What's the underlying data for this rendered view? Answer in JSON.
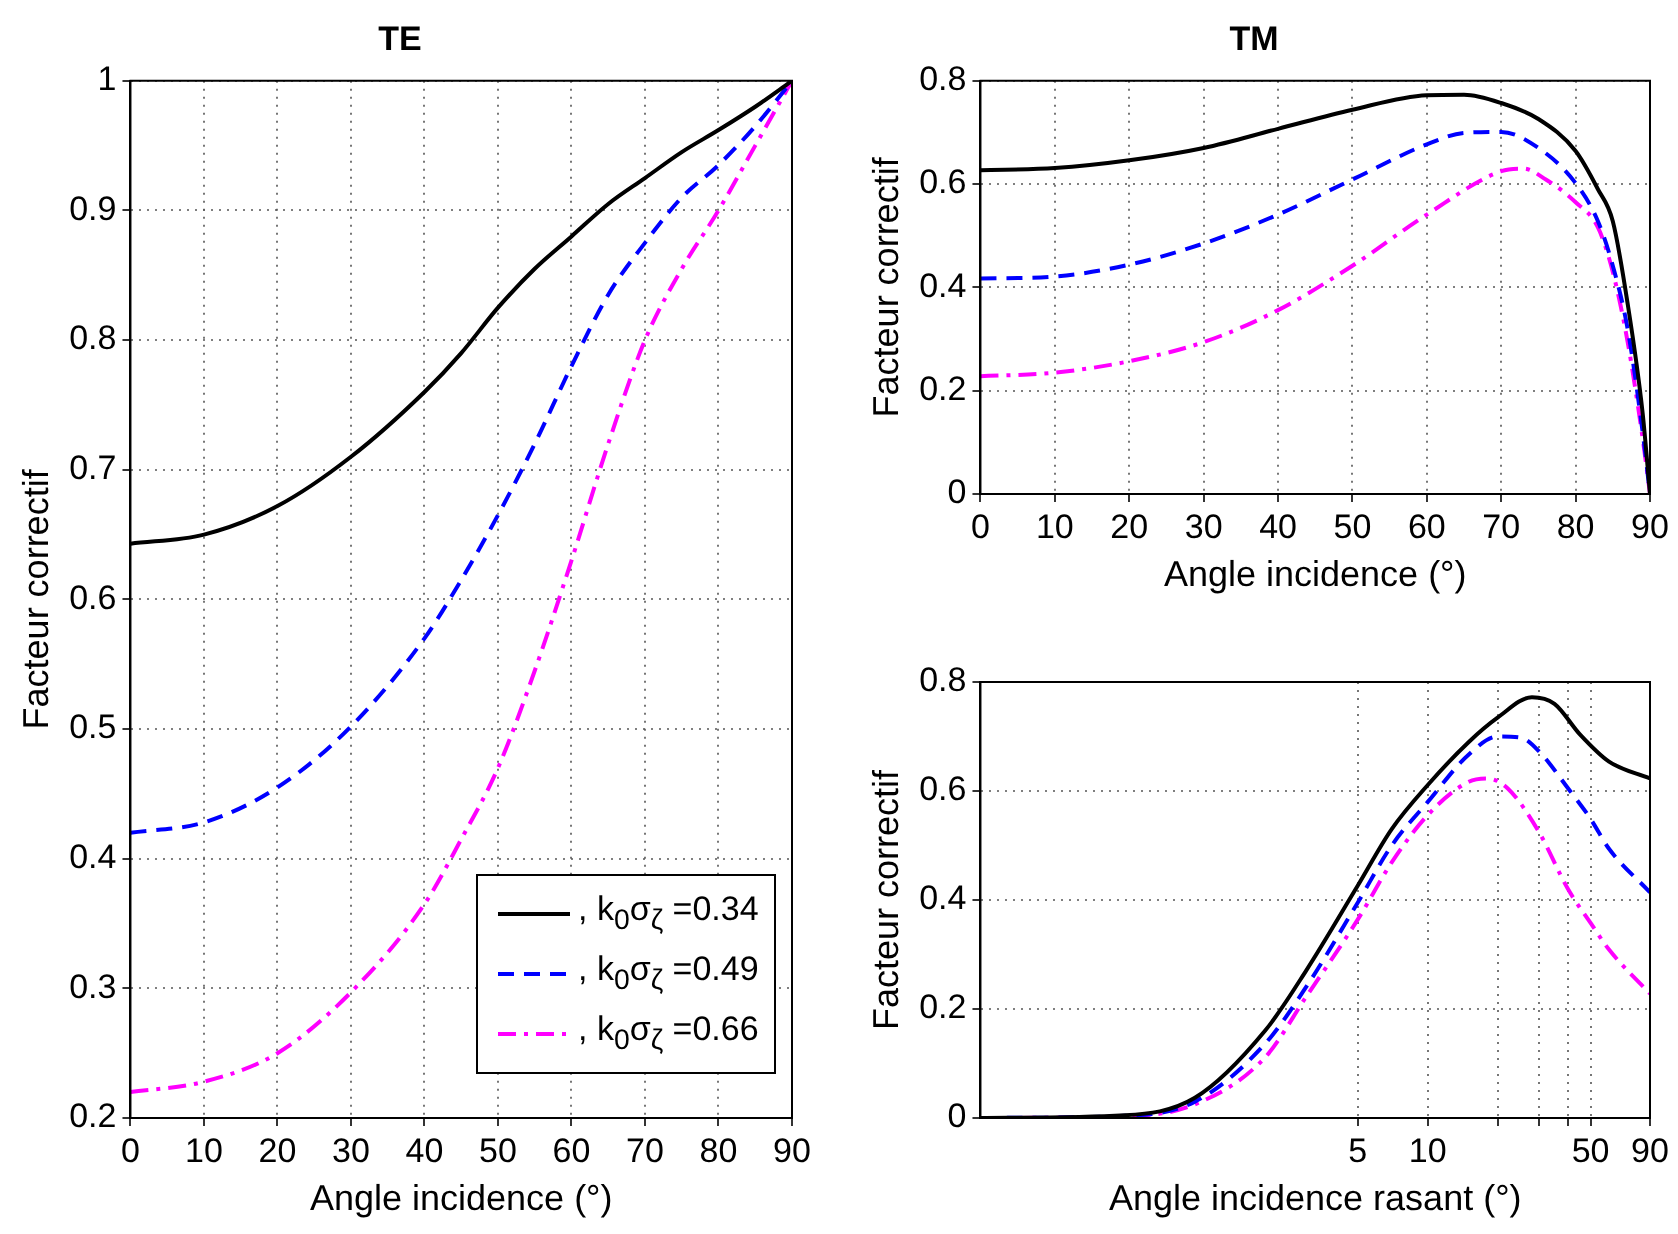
{
  "chart_data": [
    {
      "type": "line",
      "title": "TE",
      "xlabel": "Angle incidence (°)",
      "ylabel": "Facteur correctif",
      "xlim": [
        0,
        90
      ],
      "xticks": [
        0,
        10,
        20,
        30,
        40,
        50,
        60,
        70,
        80,
        90
      ],
      "ylim": [
        0.2,
        1
      ],
      "yticks": [
        0.2,
        0.3,
        0.4,
        0.5,
        0.6,
        0.7,
        0.8,
        0.9,
        1
      ],
      "grid": true,
      "legend": "bottom right",
      "marker": "none",
      "x": [
        0,
        10,
        20,
        30,
        40,
        45,
        50,
        55,
        60,
        65,
        70,
        75,
        80,
        85,
        90
      ],
      "series": [
        {
          "name": ", k$_{0}$σ$_{ζ}$ =0.34",
          "color": "#000000",
          "line_style": "solid",
          "values": [
            0.643,
            0.65,
            0.672,
            0.71,
            0.76,
            0.79,
            0.825,
            0.855,
            0.88,
            0.905,
            0.925,
            0.945,
            0.962,
            0.98,
            1
          ]
        },
        {
          "name": ", k$_{0}$σ$_{ζ}$ =0.49",
          "color": "#0000ff",
          "line_style": "dashed",
          "values": [
            0.42,
            0.428,
            0.455,
            0.502,
            0.57,
            0.615,
            0.665,
            0.72,
            0.78,
            0.835,
            0.875,
            0.91,
            0.935,
            0.965,
            1
          ]
        },
        {
          "name": ", k$_{0}$σ$_{ζ}$ =0.66",
          "color": "#ff00ff",
          "line_style": "dashdot",
          "values": [
            0.22,
            0.228,
            0.25,
            0.297,
            0.365,
            0.415,
            0.47,
            0.545,
            0.63,
            0.72,
            0.8,
            0.855,
            0.9,
            0.95,
            1
          ]
        }
      ]
    },
    {
      "type": "line",
      "title": "TM",
      "xlabel": "Angle incidence (°)",
      "ylabel": "Facteur correctif",
      "xlim": [
        0,
        90
      ],
      "xticks": [
        0,
        10,
        20,
        30,
        40,
        50,
        60,
        70,
        80,
        90
      ],
      "ylim": [
        0,
        0.8
      ],
      "yticks": [
        0,
        0.2,
        0.4,
        0.6,
        0.8
      ],
      "grid": true,
      "marker": "none",
      "series": [
        {
          "color": "#000000",
          "line_style": "solid",
          "x": [
            0,
            10,
            20,
            30,
            40,
            50,
            60,
            65,
            70,
            75,
            80,
            83,
            85,
            87,
            89,
            90
          ],
          "values": [
            0.627,
            0.631,
            0.646,
            0.67,
            0.707,
            0.744,
            0.772,
            0.773,
            0.757,
            0.726,
            0.664,
            0.59,
            0.528,
            0.368,
            0.158,
            0
          ]
        },
        {
          "color": "#0000ff",
          "line_style": "dashed",
          "x": [
            0,
            10,
            20,
            30,
            40,
            50,
            60,
            65,
            70,
            75,
            80,
            83,
            85,
            87,
            89,
            90
          ],
          "values": [
            0.417,
            0.421,
            0.444,
            0.485,
            0.541,
            0.609,
            0.677,
            0.699,
            0.701,
            0.67,
            0.602,
            0.528,
            0.442,
            0.319,
            0.121,
            0
          ]
        },
        {
          "color": "#ff00ff",
          "line_style": "dashdot",
          "x": [
            0,
            10,
            20,
            30,
            40,
            50,
            60,
            70,
            73,
            76,
            80,
            83,
            85,
            87,
            89,
            90
          ],
          "values": [
            0.228,
            0.235,
            0.257,
            0.294,
            0.356,
            0.442,
            0.541,
            0.625,
            0.63,
            0.609,
            0.565,
            0.516,
            0.43,
            0.294,
            0.109,
            0
          ]
        }
      ]
    },
    {
      "type": "line",
      "xlabel": "Angle incidence rasant (°)",
      "ylabel": "Facteur correctif",
      "log": "x",
      "xlim": [
        0.12,
        90
      ],
      "xticks": [
        5,
        10,
        {
          "value": 20,
          "label": null
        },
        {
          "value": 30,
          "label": null
        },
        {
          "value": 40,
          "label": null
        },
        50,
        90
      ],
      "ylim": [
        0,
        0.8
      ],
      "yticks": [
        0,
        0.2,
        0.4,
        0.6,
        0.8
      ],
      "grid": true,
      "marker": "none",
      "x": [
        0.12,
        0.5,
        1,
        2,
        3,
        5,
        7,
        10,
        15,
        20,
        28,
        35,
        45,
        60,
        90
      ],
      "series": [
        {
          "color": "#000000",
          "line_style": "solid",
          "values": [
            0,
            0.005,
            0.037,
            0.16,
            0.27,
            0.426,
            0.53,
            0.611,
            0.69,
            0.735,
            0.772,
            0.76,
            0.704,
            0.654,
            0.623
          ]
        },
        {
          "color": "#0000ff",
          "line_style": "dashed",
          "x": [
            0.12,
            0.5,
            1,
            2,
            3,
            5,
            7,
            10,
            15,
            20,
            25,
            30,
            40,
            50,
            60,
            90
          ],
          "values": [
            0,
            0.004,
            0.03,
            0.136,
            0.24,
            0.395,
            0.5,
            0.58,
            0.667,
            0.7,
            0.698,
            0.673,
            0.605,
            0.549,
            0.494,
            0.414
          ]
        },
        {
          "color": "#ff00ff",
          "line_style": "dashdot",
          "x": [
            0.12,
            0.5,
            1,
            2,
            3,
            5,
            7,
            10,
            15,
            18,
            22,
            30,
            40,
            50,
            60,
            90
          ],
          "values": [
            0,
            0.003,
            0.025,
            0.111,
            0.222,
            0.364,
            0.469,
            0.556,
            0.617,
            0.623,
            0.605,
            0.525,
            0.42,
            0.358,
            0.309,
            0.228
          ]
        }
      ]
    }
  ]
}
